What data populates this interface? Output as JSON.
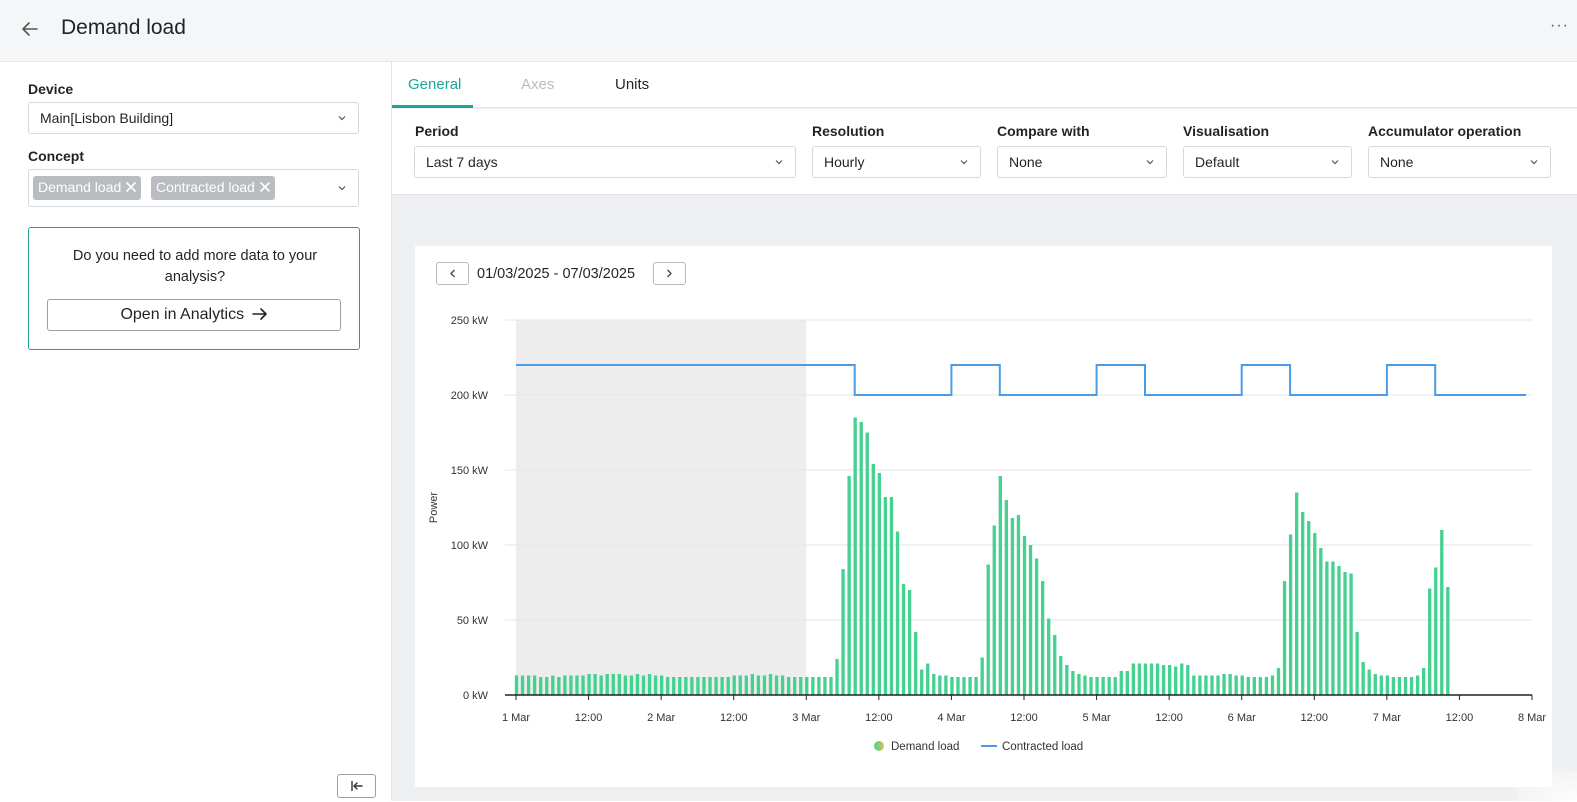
{
  "header": {
    "title": "Demand load",
    "back_icon": "arrow-left-icon",
    "more_icon": "ellipsis-icon"
  },
  "sidebar": {
    "device_label": "Device",
    "device_value": "Main[Lisbon Building]",
    "concept_label": "Concept",
    "concept_chips": [
      "Demand load",
      "Contracted load"
    ],
    "promo_text": "Do you need to add more data to your analysis?",
    "promo_button": "Open in Analytics",
    "collapse_icon": "collapse-left-icon"
  },
  "tabs": [
    {
      "label": "General",
      "state": "active"
    },
    {
      "label": "Axes",
      "state": "disabled"
    },
    {
      "label": "Units",
      "state": "normal"
    }
  ],
  "filters": {
    "period": {
      "label": "Period",
      "value": "Last 7 days"
    },
    "resolution": {
      "label": "Resolution",
      "value": "Hourly"
    },
    "compare": {
      "label": "Compare with",
      "value": "None"
    },
    "visualisation": {
      "label": "Visualisation",
      "value": "Default"
    },
    "accumulator": {
      "label": "Accumulator operation",
      "value": "None"
    }
  },
  "colors": {
    "accent": "#1aa79a",
    "bar": "#45d18f",
    "line": "#4a9be8",
    "shade": "#ededee"
  },
  "chart": {
    "date_range": "01/03/2025 - 07/03/2025",
    "prev_icon": "chevron-left-icon",
    "next_icon": "chevron-right-icon"
  },
  "chart_data": {
    "type": "bar",
    "ylabel": "Power",
    "ylim": [
      0,
      250
    ],
    "yticks": [
      "0 kW",
      "50 kW",
      "100 kW",
      "150 kW",
      "200 kW",
      "250 kW"
    ],
    "xlim_hours": [
      0,
      168
    ],
    "xticks": [
      "1 Mar",
      "12:00",
      "2 Mar",
      "12:00",
      "3 Mar",
      "12:00",
      "4 Mar",
      "12:00",
      "5 Mar",
      "12:00",
      "6 Mar",
      "12:00",
      "7 Mar",
      "12:00",
      "8 Mar"
    ],
    "shaded_range_hours": [
      0,
      48
    ],
    "legend": [
      "Demand load",
      "Contracted load"
    ],
    "series": [
      {
        "name": "Demand load",
        "type": "bar",
        "values": [
          13,
          13,
          13,
          13,
          12,
          12,
          13,
          12,
          13,
          13,
          13,
          13,
          14,
          14,
          13,
          14,
          14,
          14,
          13,
          13,
          14,
          13,
          14,
          13,
          13,
          12,
          12,
          12,
          12,
          12,
          12,
          12,
          12,
          12,
          12,
          12,
          13,
          13,
          13,
          14,
          13,
          13,
          14,
          13,
          13,
          12,
          12,
          12,
          12,
          12,
          12,
          12,
          12,
          24,
          84,
          146,
          185,
          182,
          175,
          154,
          148,
          132,
          132,
          109,
          74,
          70,
          42,
          17,
          21,
          14,
          13,
          13,
          12,
          12,
          12,
          12,
          12,
          25,
          87,
          113,
          146,
          130,
          118,
          120,
          106,
          100,
          91,
          76,
          51,
          40,
          26,
          20,
          16,
          14,
          13,
          12,
          12,
          12,
          12,
          12,
          16,
          16,
          21,
          21,
          21,
          21,
          21,
          20,
          20,
          19,
          21,
          20,
          13,
          13,
          13,
          13,
          13,
          14,
          14,
          13,
          13,
          12,
          12,
          12,
          12,
          13,
          18,
          76,
          107,
          135,
          122,
          116,
          108,
          98,
          89,
          89,
          86,
          82,
          81,
          42,
          22,
          17,
          14,
          13,
          13,
          12,
          12,
          12,
          12,
          13,
          18,
          71,
          85,
          110,
          72,
          0
        ]
      },
      {
        "name": "Contracted load",
        "type": "step-line",
        "x_hours": [
          0,
          56,
          56,
          72,
          72,
          80,
          80,
          96,
          96,
          104,
          104,
          120,
          120,
          128,
          128,
          144,
          144,
          152,
          152,
          167
        ],
        "values": [
          220,
          220,
          200,
          200,
          220,
          220,
          200,
          200,
          220,
          220,
          200,
          200,
          220,
          220,
          200,
          200,
          220,
          220,
          200,
          200
        ]
      }
    ]
  }
}
